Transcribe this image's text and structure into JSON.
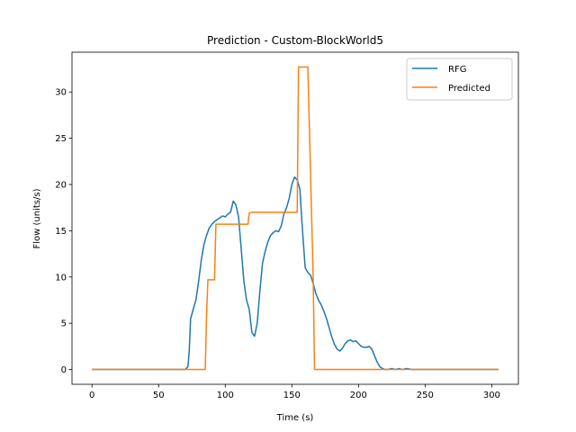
{
  "chart_data": {
    "type": "line",
    "title": "Prediction - Custom-BlockWorld5",
    "xlabel": "Time (s)",
    "ylabel": "Flow (units/s)",
    "xlim": [
      -15,
      320
    ],
    "ylim": [
      -1.6,
      34.3
    ],
    "xticks": [
      0,
      50,
      100,
      150,
      200,
      250,
      300
    ],
    "yticks": [
      0,
      5,
      10,
      15,
      20,
      25,
      30
    ],
    "grid": false,
    "legend_position": "top-right",
    "series": [
      {
        "name": "RFG",
        "color": "#1f77b4",
        "x": [
          0,
          70,
          72,
          73,
          74,
          76,
          78,
          80,
          82,
          84,
          86,
          88,
          90,
          92,
          94,
          96,
          98,
          100,
          102,
          104,
          106,
          108,
          110,
          112,
          114,
          116,
          118,
          120,
          122,
          124,
          126,
          128,
          130,
          132,
          134,
          136,
          138,
          140,
          142,
          144,
          146,
          148,
          150,
          152,
          154,
          156,
          158,
          160,
          162,
          164,
          166,
          168,
          170,
          172,
          174,
          176,
          178,
          180,
          182,
          184,
          186,
          188,
          190,
          192,
          194,
          196,
          198,
          200,
          202,
          204,
          206,
          208,
          210,
          212,
          214,
          216,
          218,
          220,
          222,
          225,
          228,
          230,
          233,
          236,
          240,
          245,
          300,
          305
        ],
        "y": [
          0,
          0,
          0.3,
          2.0,
          5.5,
          6.5,
          7.5,
          9.5,
          11.8,
          13.5,
          14.5,
          15.3,
          15.7,
          16.0,
          16.2,
          16.4,
          16.6,
          16.5,
          16.8,
          17.0,
          18.2,
          17.8,
          16.5,
          13.0,
          9.5,
          7.5,
          6.5,
          4.0,
          3.6,
          5.0,
          8.5,
          11.5,
          12.8,
          13.8,
          14.5,
          14.8,
          15.0,
          14.9,
          15.5,
          16.8,
          17.5,
          18.5,
          20.0,
          20.8,
          20.5,
          19.5,
          15.0,
          11.0,
          10.5,
          10.2,
          9.3,
          8.2,
          7.5,
          7.0,
          6.3,
          5.5,
          4.5,
          3.5,
          2.7,
          2.2,
          2.0,
          2.3,
          2.8,
          3.1,
          3.2,
          3.0,
          3.1,
          2.8,
          2.5,
          2.4,
          2.4,
          2.5,
          2.2,
          1.5,
          0.8,
          0.3,
          0.1,
          0.0,
          0.0,
          0.1,
          0.0,
          0.1,
          0.0,
          0.1,
          0.0,
          0.0,
          0.0,
          0.0
        ]
      },
      {
        "name": "Predicted",
        "color": "#ff7f0e",
        "x": [
          0,
          85,
          86,
          87,
          92,
          93,
          117,
          118,
          120,
          154,
          155,
          162,
          163,
          166,
          167,
          305
        ],
        "y": [
          0,
          0,
          6.0,
          9.7,
          9.7,
          15.7,
          15.7,
          16.9,
          17.0,
          17.0,
          32.7,
          32.7,
          27.0,
          10.0,
          0,
          0
        ]
      }
    ]
  }
}
